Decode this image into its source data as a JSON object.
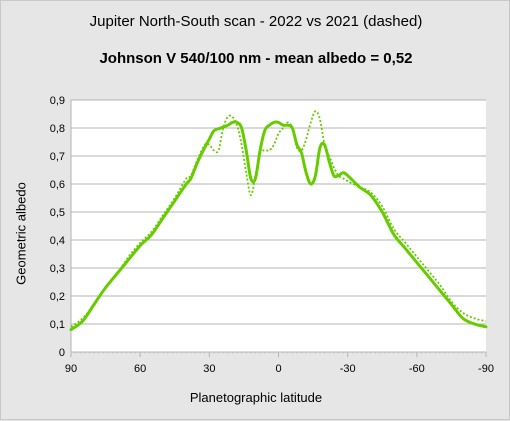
{
  "chart_data": {
    "type": "line",
    "title": "Jupiter North-South scan - 2022 vs 2021 (dashed)",
    "subtitle": "Johnson V 540/100 nm - mean albedo = 0,52",
    "xlabel": "Planetographic latitude",
    "ylabel": "Geometric albedo",
    "xlim": [
      90,
      -90
    ],
    "ylim": [
      0,
      0.9
    ],
    "x_ticks": [
      "90",
      "60",
      "30",
      "0",
      "-30",
      "-60",
      "-90"
    ],
    "x_tick_values": [
      90,
      60,
      30,
      0,
      -30,
      -60,
      -90
    ],
    "y_ticks": [
      "0",
      "0,1",
      "0,2",
      "0,3",
      "0,4",
      "0,5",
      "0,6",
      "0,7",
      "0,8",
      "0,9"
    ],
    "y_tick_values": [
      0,
      0.1,
      0.2,
      0.3,
      0.4,
      0.5,
      0.6,
      0.7,
      0.8,
      0.9
    ],
    "grid": true,
    "color": "#66cc00",
    "series": [
      {
        "style": "solid",
        "x": [
          90,
          85,
          80,
          75,
          70,
          65,
          60,
          55,
          50,
          45,
          40,
          38,
          35,
          32,
          30,
          28,
          25,
          22,
          20,
          18,
          16,
          14,
          12,
          10,
          8,
          6,
          4,
          2,
          0,
          -2,
          -4,
          -6,
          -8,
          -10,
          -12,
          -14,
          -16,
          -18,
          -20,
          -22,
          -24,
          -26,
          -28,
          -30,
          -35,
          -40,
          -45,
          -50,
          -55,
          -60,
          -65,
          -70,
          -75,
          -80,
          -85,
          -90
        ],
        "y": [
          0.08,
          0.11,
          0.17,
          0.23,
          0.28,
          0.33,
          0.38,
          0.42,
          0.48,
          0.54,
          0.6,
          0.62,
          0.68,
          0.73,
          0.76,
          0.79,
          0.8,
          0.81,
          0.82,
          0.82,
          0.8,
          0.72,
          0.62,
          0.62,
          0.72,
          0.79,
          0.81,
          0.82,
          0.82,
          0.81,
          0.81,
          0.8,
          0.74,
          0.71,
          0.64,
          0.6,
          0.63,
          0.73,
          0.74,
          0.68,
          0.63,
          0.63,
          0.64,
          0.63,
          0.59,
          0.56,
          0.5,
          0.42,
          0.37,
          0.32,
          0.27,
          0.22,
          0.17,
          0.12,
          0.1,
          0.09
        ]
      },
      {
        "style": "dashed",
        "x": [
          90,
          85,
          80,
          75,
          70,
          65,
          60,
          55,
          50,
          45,
          40,
          38,
          35,
          32,
          30,
          28,
          26,
          24,
          22,
          20,
          18,
          16,
          14,
          12,
          10,
          8,
          6,
          4,
          2,
          0,
          -2,
          -4,
          -6,
          -8,
          -10,
          -12,
          -14,
          -16,
          -18,
          -20,
          -22,
          -24,
          -26,
          -28,
          -30,
          -35,
          -40,
          -45,
          -50,
          -55,
          -60,
          -65,
          -70,
          -75,
          -80,
          -85,
          -90
        ],
        "y": [
          0.09,
          0.12,
          0.17,
          0.23,
          0.28,
          0.34,
          0.39,
          0.43,
          0.49,
          0.55,
          0.62,
          0.63,
          0.69,
          0.74,
          0.74,
          0.72,
          0.72,
          0.8,
          0.84,
          0.84,
          0.81,
          0.74,
          0.64,
          0.56,
          0.63,
          0.71,
          0.72,
          0.72,
          0.74,
          0.78,
          0.8,
          0.82,
          0.8,
          0.73,
          0.72,
          0.76,
          0.82,
          0.86,
          0.83,
          0.74,
          0.7,
          0.66,
          0.63,
          0.62,
          0.61,
          0.59,
          0.57,
          0.52,
          0.44,
          0.39,
          0.34,
          0.29,
          0.24,
          0.18,
          0.14,
          0.12,
          0.11
        ]
      }
    ]
  }
}
